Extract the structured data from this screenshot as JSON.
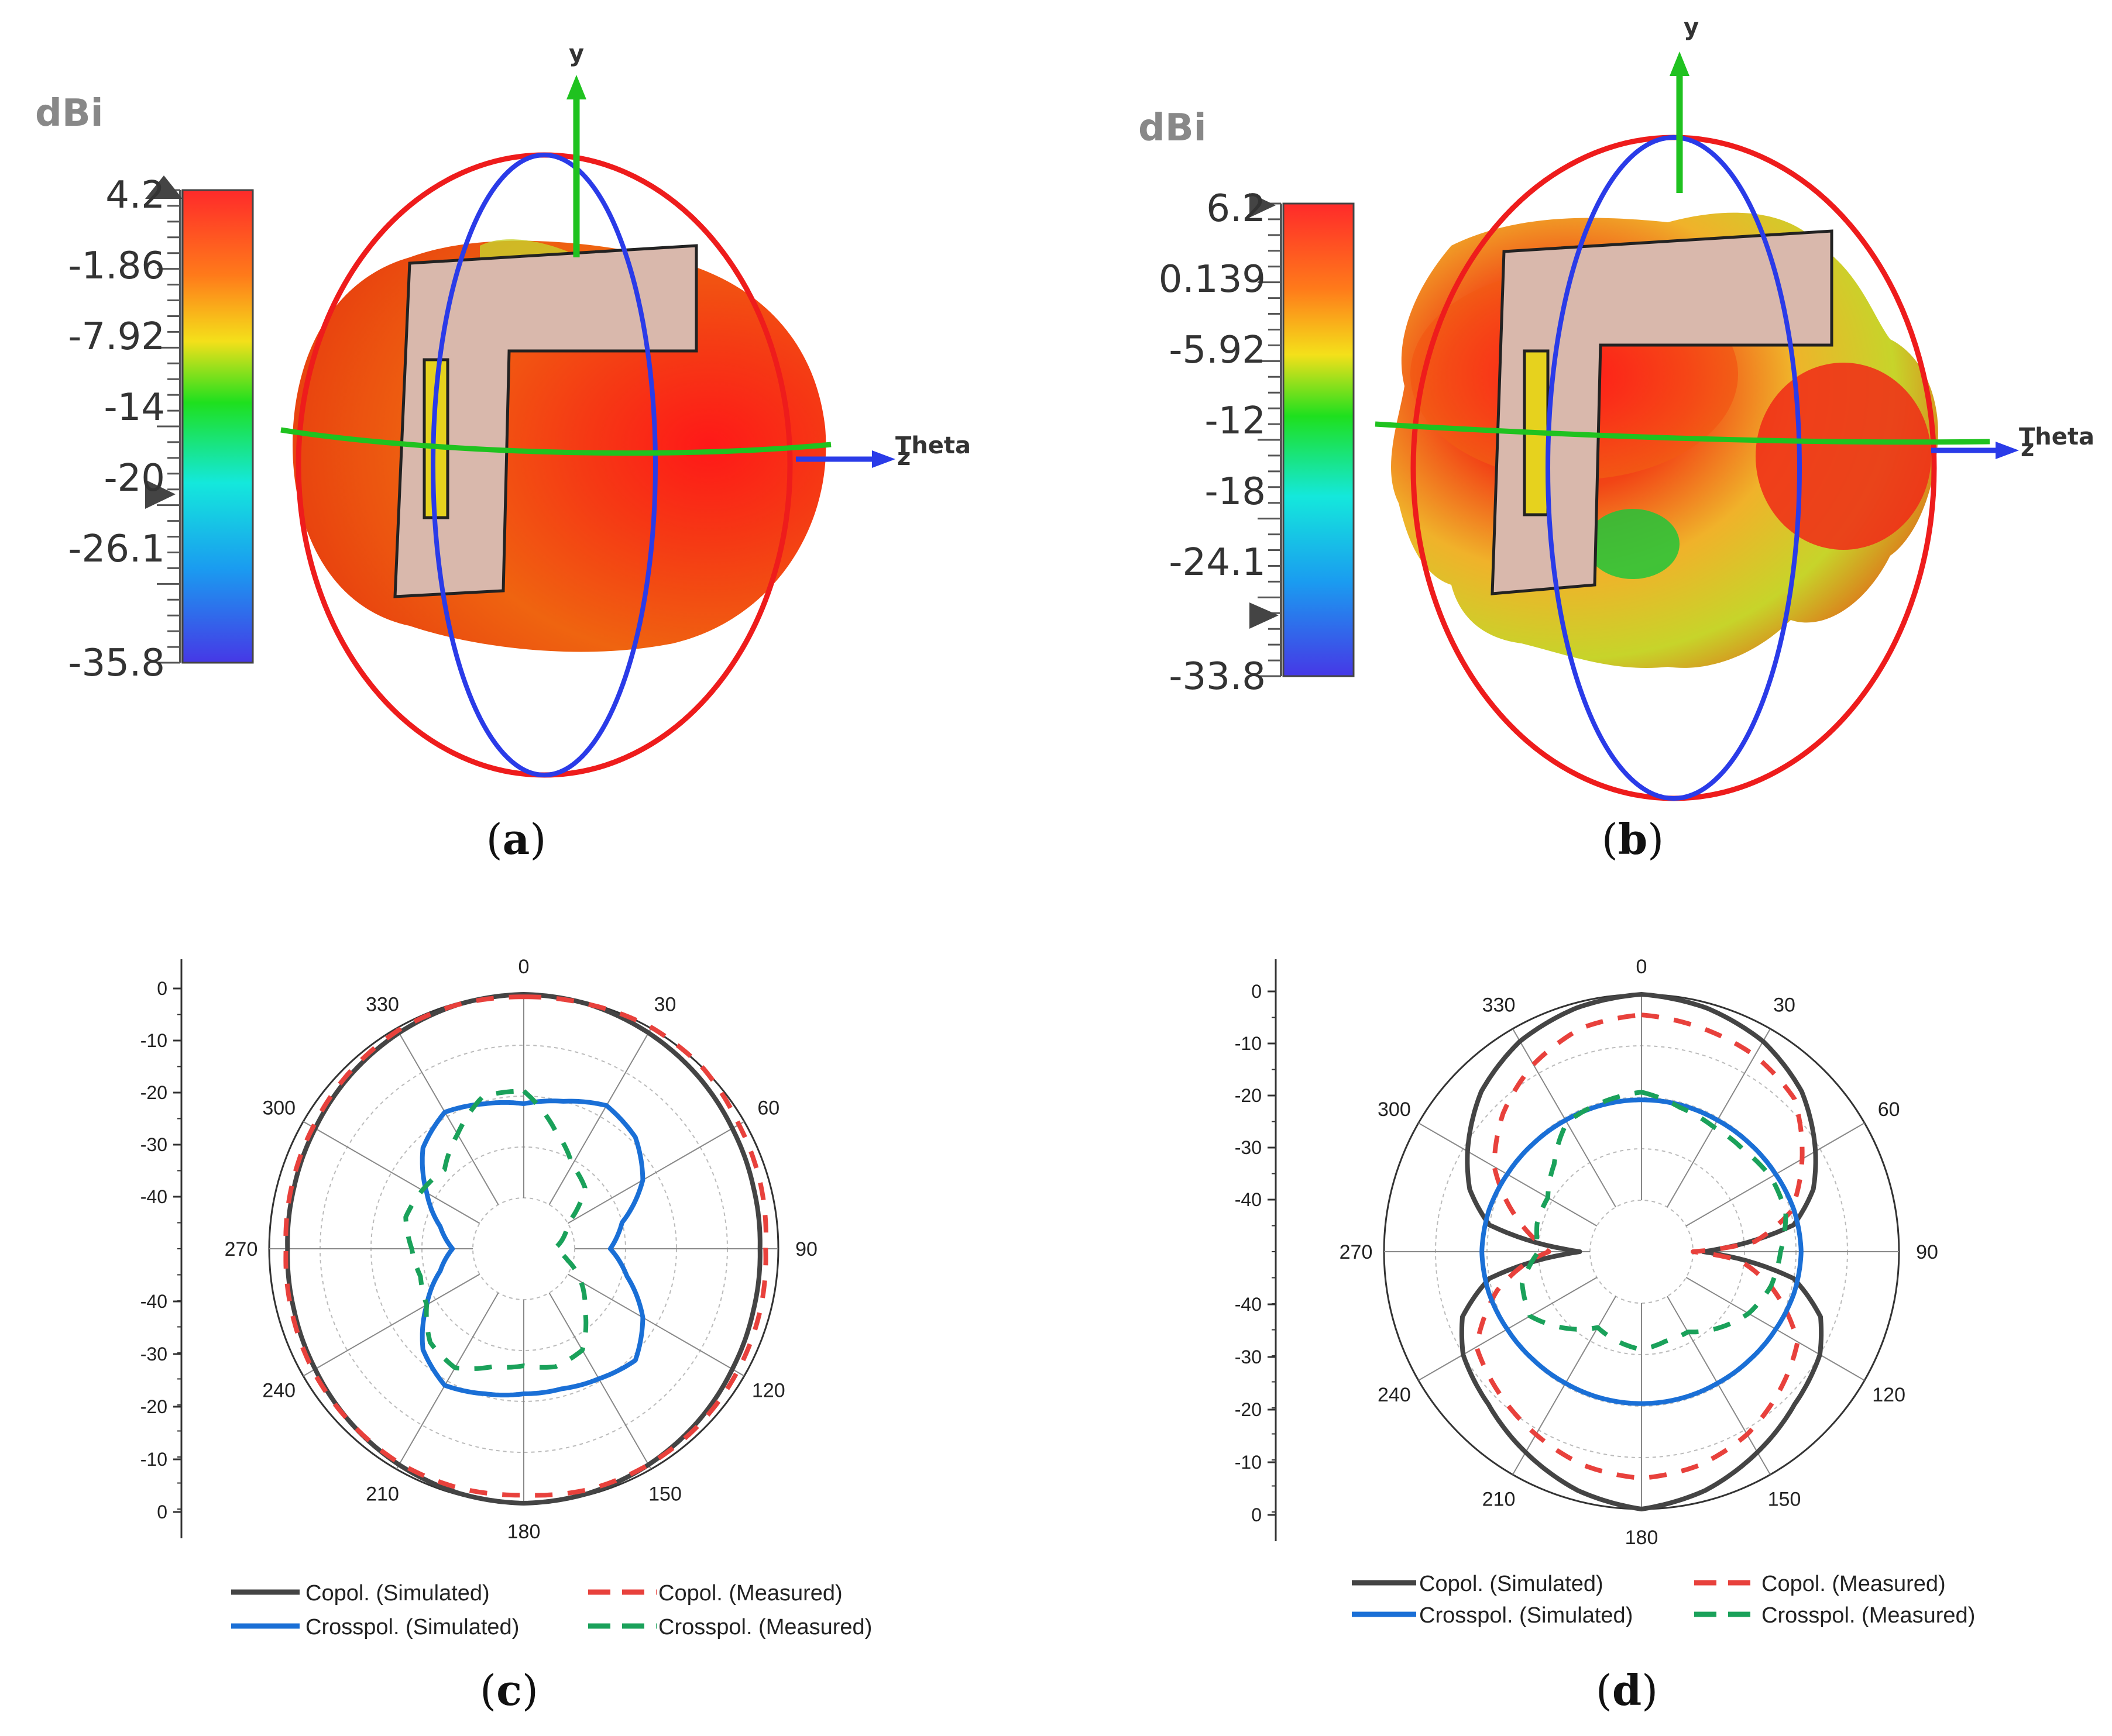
{
  "panels_3d": [
    {
      "label": "a",
      "unit": "dBi",
      "colorbar_ticks": [
        "4.2",
        "-1.86",
        "-7.92",
        "-14",
        "-20",
        "-26.1",
        "-35.8"
      ],
      "axis_labels": {
        "y": "y",
        "theta": "Theta",
        "z": "z"
      }
    },
    {
      "label": "b",
      "unit": "dBi",
      "colorbar_ticks": [
        "6.2",
        "0.139",
        "-5.92",
        "-12",
        "-18",
        "-24.1",
        "-33.8"
      ],
      "axis_labels": {
        "y": "y",
        "theta": "Theta",
        "z": "z"
      }
    }
  ],
  "chart_data": [
    {
      "type": "polar",
      "label": "c",
      "angle_ticks": [
        "0",
        "30",
        "60",
        "90",
        "120",
        "150",
        "180",
        "210",
        "240",
        "270",
        "300",
        "330"
      ],
      "r_ticks_upper": [
        "0",
        "-10",
        "-20",
        "-30",
        "-40"
      ],
      "r_ticks_lower": [
        "-40",
        "-30",
        "-20",
        "-10",
        "0"
      ],
      "rlim": [
        -50,
        0
      ],
      "series": [
        {
          "name": "Copol. (Simulated)",
          "color": "#444444",
          "style": "solid",
          "angles": [
            0,
            15,
            30,
            45,
            60,
            75,
            90,
            105,
            120,
            135,
            150,
            165,
            180,
            195,
            210,
            225,
            240,
            255,
            270,
            285,
            300,
            315,
            330,
            345,
            360
          ],
          "values": [
            0,
            -0.3,
            -1,
            -1.8,
            -2.7,
            -3.3,
            -3.6,
            -3.3,
            -2.7,
            -1.8,
            -1,
            -0.3,
            0,
            -0.3,
            -1,
            -1.8,
            -2.7,
            -3.3,
            -3.6,
            -3.3,
            -2.7,
            -1.8,
            -1,
            -0.3,
            0
          ]
        },
        {
          "name": "Copol. (Measured)",
          "color": "#e8413c",
          "style": "dashed",
          "angles": [
            0,
            15,
            30,
            45,
            60,
            75,
            90,
            105,
            120,
            135,
            150,
            165,
            180,
            195,
            210,
            225,
            240,
            255,
            270,
            285,
            300,
            315,
            330,
            345,
            360
          ],
          "values": [
            -0.5,
            -0.3,
            0.2,
            0,
            -1.2,
            -1.8,
            -2.5,
            -2,
            -1.6,
            -1.2,
            -1,
            -1,
            -1.6,
            -1.3,
            -1.3,
            -1.8,
            -2.2,
            -2.8,
            -3.3,
            -2.8,
            -2.2,
            -1.3,
            -0.5,
            -0.3,
            -0.5
          ]
        },
        {
          "name": "Crosspol. (Simulated)",
          "color": "#1a6fd6",
          "style": "solid",
          "angles": [
            0,
            15,
            30,
            45,
            60,
            75,
            90,
            105,
            120,
            135,
            150,
            165,
            180,
            195,
            210,
            225,
            240,
            255,
            270,
            285,
            300,
            315,
            330,
            345,
            360
          ],
          "values": [
            -21.5,
            -20,
            -17.5,
            -19,
            -23,
            -30,
            -33,
            -29,
            -23,
            -19,
            -20.5,
            -21.5,
            -21.5,
            -20.5,
            -19,
            -22,
            -28,
            -33,
            -36,
            -33,
            -28,
            -22,
            -19,
            -20.5,
            -21.5
          ]
        },
        {
          "name": "Crosspol. (Measured)",
          "color": "#1aa15a",
          "style": "dashed",
          "angles": [
            0,
            15,
            30,
            45,
            60,
            75,
            90,
            105,
            120,
            135,
            150,
            165,
            180,
            195,
            210,
            225,
            240,
            255,
            270,
            285,
            300,
            315,
            330,
            345,
            360
          ],
          "values": [
            -19,
            -26,
            -31,
            -33,
            -40,
            -42,
            -44,
            -41,
            -37,
            -33,
            -27,
            -26,
            -27,
            -26,
            -23,
            -24,
            -28,
            -29,
            -28,
            -26,
            -27,
            -28,
            -24,
            -19,
            -19
          ]
        }
      ]
    },
    {
      "type": "polar",
      "label": "d",
      "angle_ticks": [
        "0",
        "30",
        "60",
        "90",
        "120",
        "150",
        "180",
        "210",
        "240",
        "270",
        "300",
        "330"
      ],
      "r_ticks_upper": [
        "0",
        "-10",
        "-20",
        "-30",
        "-40"
      ],
      "r_ticks_lower": [
        "-40",
        "-30",
        "-20",
        "-10",
        "0"
      ],
      "rlim": [
        -50,
        0
      ],
      "series": [
        {
          "name": "Copol. (Simulated)",
          "color": "#444444",
          "style": "solid",
          "angles": [
            0,
            15,
            30,
            45,
            60,
            70,
            80,
            88,
            90,
            92,
            100,
            110,
            120,
            135,
            150,
            165,
            180,
            195,
            210,
            225,
            240,
            250,
            260,
            268,
            270,
            272,
            280,
            290,
            300,
            315,
            330,
            345,
            360
          ],
          "values": [
            0,
            -1,
            -2.8,
            -6,
            -11,
            -14.5,
            -20,
            -35,
            -38,
            -35,
            -20,
            -13,
            -10,
            -8,
            -5,
            -2,
            0,
            -2,
            -5,
            -8,
            -10,
            -13,
            -20,
            -35,
            -38,
            -35,
            -20,
            -14.5,
            -11,
            -6,
            -2.8,
            -1,
            0
          ]
        },
        {
          "name": "Copol. (Measured)",
          "color": "#e8413c",
          "style": "dashed",
          "angles": [
            0,
            15,
            30,
            45,
            60,
            75,
            85,
            90,
            95,
            105,
            120,
            135,
            150,
            165,
            180,
            195,
            210,
            225,
            240,
            255,
            265,
            270,
            275,
            285,
            300,
            315,
            330,
            345,
            360
          ],
          "values": [
            -4,
            -5,
            -6,
            -8,
            -14,
            -20,
            -28,
            -40,
            -31,
            -24,
            -15,
            -12,
            -9,
            -7,
            -6,
            -7,
            -9,
            -11,
            -13,
            -21,
            -28,
            -32,
            -30,
            -25,
            -17,
            -12,
            -8,
            -5,
            -4
          ]
        },
        {
          "name": "Crosspol. (Simulated)",
          "color": "#1a6fd6",
          "style": "solid",
          "angles": [
            0,
            15,
            30,
            45,
            60,
            75,
            90,
            105,
            120,
            135,
            150,
            165,
            180,
            195,
            210,
            225,
            240,
            255,
            270,
            285,
            300,
            315,
            330,
            345,
            360
          ],
          "values": [
            -20.5,
            -20.5,
            -20.5,
            -20.3,
            -19.9,
            -19.3,
            -19,
            -19.3,
            -19.9,
            -20.3,
            -20.5,
            -20.5,
            -20.5,
            -20.5,
            -20.5,
            -20.3,
            -19.9,
            -19.3,
            -19,
            -19.3,
            -19.9,
            -20.3,
            -20.5,
            -20.5,
            -20.5
          ]
        },
        {
          "name": "Crosspol. (Measured)",
          "color": "#1aa15a",
          "style": "dashed",
          "angles": [
            0,
            15,
            30,
            45,
            60,
            75,
            90,
            105,
            120,
            135,
            150,
            165,
            180,
            195,
            210,
            225,
            240,
            255,
            270,
            285,
            300,
            315,
            330,
            345,
            360
          ],
          "values": [
            -19,
            -21,
            -22,
            -22,
            -21,
            -21,
            -23,
            -24,
            -26,
            -29,
            -32,
            -32,
            -31,
            -32,
            -33,
            -29,
            -25,
            -26,
            -30,
            -29,
            -29,
            -26,
            -21,
            -20,
            -19
          ]
        }
      ]
    }
  ]
}
